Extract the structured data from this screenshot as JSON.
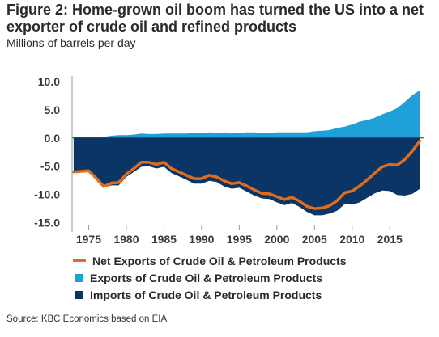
{
  "header": {
    "title": "Figure 2:  Home-grown oil boom has turned the US into a net exporter of crude oil and refined products",
    "subtitle": "Millions of barrels per day"
  },
  "footer": {
    "source": "Source: KBC Economics based on EIA"
  },
  "chart_data": {
    "type": "area",
    "x": [
      1973,
      1974,
      1975,
      1976,
      1977,
      1978,
      1979,
      1980,
      1981,
      1982,
      1983,
      1984,
      1985,
      1986,
      1987,
      1988,
      1989,
      1990,
      1991,
      1992,
      1993,
      1994,
      1995,
      1996,
      1997,
      1998,
      1999,
      2000,
      2001,
      2002,
      2003,
      2004,
      2005,
      2006,
      2007,
      2008,
      2009,
      2010,
      2011,
      2012,
      2013,
      2014,
      2015,
      2016,
      2017,
      2018,
      2019
    ],
    "xticks": [
      1975,
      1980,
      1985,
      1990,
      1995,
      2000,
      2005,
      2010,
      2015
    ],
    "yticks": [
      10.0,
      5.0,
      0.0,
      -5.0,
      -10.0,
      -15.0
    ],
    "ylim": [
      -15.5,
      11.0
    ],
    "xlim": [
      1972.8,
      2019.6
    ],
    "series": [
      {
        "name": "Net Exports of Crude Oil & Petroleum Products",
        "kind": "line",
        "color": "#e06c1c",
        "values": [
          -6.0,
          -5.9,
          -5.8,
          -7.1,
          -8.6,
          -8.0,
          -7.9,
          -6.4,
          -5.4,
          -4.3,
          -4.3,
          -4.7,
          -4.3,
          -5.4,
          -6.0,
          -6.6,
          -7.2,
          -7.2,
          -6.6,
          -6.9,
          -7.6,
          -8.1,
          -7.9,
          -8.5,
          -9.2,
          -9.8,
          -9.9,
          -10.4,
          -10.9,
          -10.5,
          -11.2,
          -12.1,
          -12.5,
          -12.4,
          -12.0,
          -11.1,
          -9.7,
          -9.4,
          -8.5,
          -7.4,
          -6.2,
          -5.1,
          -4.7,
          -4.8,
          -3.8,
          -2.3,
          -0.5
        ]
      },
      {
        "name": "Exports of Crude Oil & Petroleum Products",
        "kind": "area",
        "color": "#1fa0d8",
        "values": [
          0.2,
          0.2,
          0.2,
          0.2,
          0.2,
          0.4,
          0.5,
          0.5,
          0.6,
          0.8,
          0.7,
          0.7,
          0.8,
          0.8,
          0.8,
          0.8,
          0.9,
          0.9,
          1.0,
          0.9,
          1.0,
          0.9,
          0.9,
          1.0,
          1.0,
          0.9,
          0.9,
          1.0,
          1.0,
          1.0,
          1.0,
          1.0,
          1.2,
          1.3,
          1.4,
          1.8,
          2.0,
          2.4,
          2.9,
          3.2,
          3.6,
          4.2,
          4.7,
          5.3,
          6.4,
          7.6,
          8.5
        ]
      },
      {
        "name": "Imports of Crude Oil & Petroleum Products",
        "kind": "area",
        "color": "#0b3564",
        "values": [
          -6.2,
          -6.1,
          -6.0,
          -7.3,
          -8.8,
          -8.4,
          -8.4,
          -6.9,
          -6.0,
          -5.1,
          -5.0,
          -5.4,
          -5.1,
          -6.2,
          -6.8,
          -7.4,
          -8.1,
          -8.1,
          -7.6,
          -7.8,
          -8.6,
          -9.0,
          -8.8,
          -9.5,
          -10.2,
          -10.7,
          -10.8,
          -11.4,
          -11.9,
          -11.5,
          -12.2,
          -13.1,
          -13.7,
          -13.7,
          -13.4,
          -12.9,
          -11.7,
          -11.8,
          -11.4,
          -10.6,
          -9.8,
          -9.3,
          -9.4,
          -10.1,
          -10.2,
          -9.9,
          -9.0
        ]
      }
    ]
  },
  "legend_order": [
    0,
    1,
    2
  ]
}
